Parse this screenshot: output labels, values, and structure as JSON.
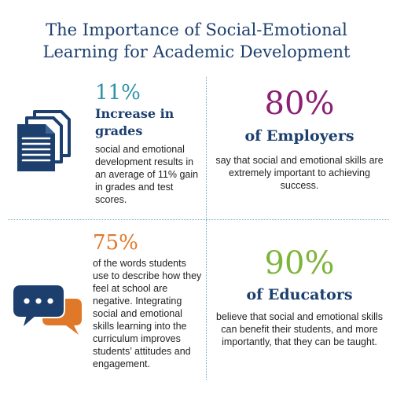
{
  "title": {
    "line1": "The Importance of Social-Emotional",
    "line2": "Learning for Academic Development"
  },
  "stats": [
    {
      "value": "11%",
      "heading_line1": "Increase in",
      "heading_line2": "grades",
      "description": "social and emotional development results in an average of 11% gain in grades and test scores.",
      "color": "#2e93a8",
      "icon": "documents-icon"
    },
    {
      "value": "80%",
      "heading": "of Employers",
      "description": "say that social and emotional skills are extremely important to achieving success.",
      "color": "#8b1f73"
    },
    {
      "value": "75%",
      "description": "of the words students use to describe how they feel at school are negative. Integrating social and emotional skills learning into the curriculum improves students’ attitudes and engagement.",
      "color": "#e0782a",
      "icon": "chat-bubbles-icon"
    },
    {
      "value": "90%",
      "heading": "of Educators",
      "description": "believe that social and emotional skills can benefit their students, and more importantly, that they can be taught.",
      "color": "#7db43a"
    }
  ],
  "colors": {
    "navy": "#1c3f6e",
    "divider": "#6aa9c9"
  }
}
